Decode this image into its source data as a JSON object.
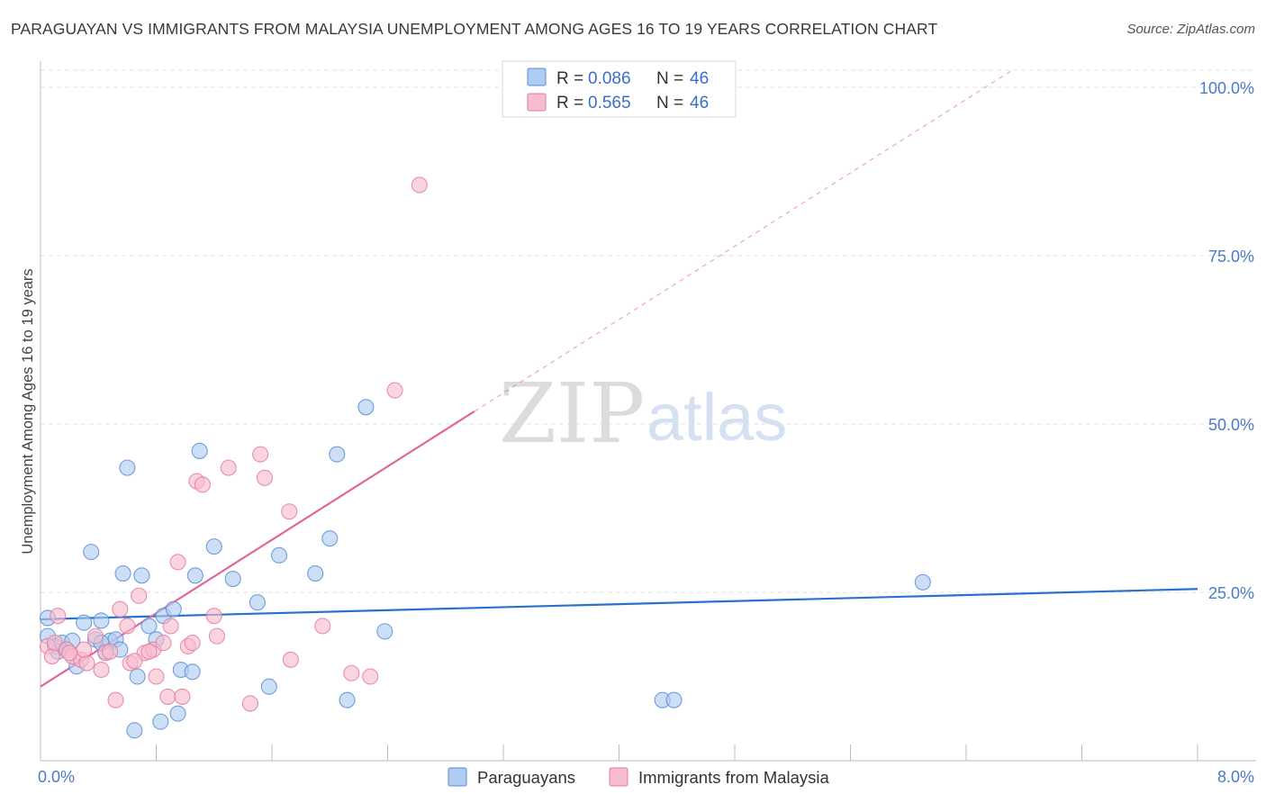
{
  "title": "PARAGUAYAN VS IMMIGRANTS FROM MALAYSIA UNEMPLOYMENT AMONG AGES 16 TO 19 YEARS CORRELATION CHART",
  "source": "Source: ZipAtlas.com",
  "watermark": {
    "zip": "ZIP",
    "atlas": "atlas"
  },
  "colors": {
    "blue_fill": "#aecbf0",
    "blue_stroke": "#5b8fd6",
    "blue_line": "#2a72c9",
    "pink_fill": "#f7bccd",
    "pink_stroke": "#e57c9f",
    "pink_line": "#e0679a",
    "grid": "#e2e2e2",
    "axis_text": "#4a7bc8"
  },
  "legend": {
    "entries": [
      {
        "r_label": "R = ",
        "r_value": "0.086",
        "n_label": "N = ",
        "n_value": "46"
      },
      {
        "r_label": "R = ",
        "r_value": "0.565",
        "n_label": "N = ",
        "n_value": "46"
      }
    ]
  },
  "chart_data": {
    "type": "scatter",
    "title": "PARAGUAYAN VS IMMIGRANTS FROM MALAYSIA UNEMPLOYMENT AMONG AGES 16 TO 19 YEARS CORRELATION CHART",
    "xlabel": "",
    "ylabel": "Unemployment Among Ages 16 to 19 years",
    "xlim": [
      0.0,
      8.0
    ],
    "ylim": [
      0.0,
      100.0
    ],
    "x_tick_labels": [
      "0.0%",
      "8.0%"
    ],
    "y_ticks": [
      25,
      50,
      75,
      100
    ],
    "y_tick_labels": [
      "25.0%",
      "50.0%",
      "75.0%",
      "100.0%"
    ],
    "grid": true,
    "legend_position": "top-center",
    "series": [
      {
        "name": "Paraguayans",
        "color": "#aecbf0",
        "trend": {
          "x": [
            0.0,
            8.0
          ],
          "y": [
            21.0,
            25.5
          ],
          "dashed_from_x": null
        },
        "points": [
          [
            0.05,
            21.2
          ],
          [
            0.05,
            18.5
          ],
          [
            0.1,
            17.0
          ],
          [
            0.12,
            16.2
          ],
          [
            0.15,
            17.5
          ],
          [
            0.18,
            16.5
          ],
          [
            0.22,
            17.8
          ],
          [
            0.25,
            14.0
          ],
          [
            0.3,
            20.5
          ],
          [
            0.35,
            31.0
          ],
          [
            0.38,
            18.0
          ],
          [
            0.42,
            20.8
          ],
          [
            0.45,
            16.2
          ],
          [
            0.48,
            17.8
          ],
          [
            0.52,
            18.0
          ],
          [
            0.57,
            27.8
          ],
          [
            0.6,
            43.5
          ],
          [
            0.67,
            12.5
          ],
          [
            0.7,
            27.5
          ],
          [
            0.75,
            20.0
          ],
          [
            0.8,
            18.0
          ],
          [
            0.83,
            5.8
          ],
          [
            0.85,
            21.5
          ],
          [
            0.92,
            22.5
          ],
          [
            0.95,
            7.0
          ],
          [
            0.97,
            13.5
          ],
          [
            1.07,
            27.5
          ],
          [
            1.1,
            46.0
          ],
          [
            1.2,
            31.8
          ],
          [
            1.33,
            27.0
          ],
          [
            1.5,
            23.5
          ],
          [
            1.58,
            11.0
          ],
          [
            1.65,
            30.5
          ],
          [
            1.9,
            27.8
          ],
          [
            2.0,
            33.0
          ],
          [
            2.05,
            45.5
          ],
          [
            2.12,
            9.0
          ],
          [
            2.25,
            52.5
          ],
          [
            2.38,
            19.2
          ],
          [
            4.3,
            9.0
          ],
          [
            4.38,
            9.0
          ],
          [
            6.1,
            26.5
          ],
          [
            0.65,
            4.5
          ],
          [
            1.05,
            13.2
          ],
          [
            0.42,
            17.5
          ],
          [
            0.55,
            16.5
          ]
        ]
      },
      {
        "name": "Immigrants from Malaysia",
        "color": "#f7bccd",
        "trend": {
          "x": [
            0.0,
            8.0
          ],
          "y": [
            11.0,
            120.0
          ],
          "dashed_from_x": 3.0
        },
        "points": [
          [
            0.05,
            17.0
          ],
          [
            0.08,
            15.5
          ],
          [
            0.1,
            17.5
          ],
          [
            0.12,
            21.5
          ],
          [
            0.18,
            16.5
          ],
          [
            0.22,
            15.5
          ],
          [
            0.28,
            15.0
          ],
          [
            0.32,
            14.5
          ],
          [
            0.38,
            18.5
          ],
          [
            0.42,
            13.5
          ],
          [
            0.45,
            16.0
          ],
          [
            0.52,
            9.0
          ],
          [
            0.55,
            22.5
          ],
          [
            0.6,
            20.0
          ],
          [
            0.62,
            14.5
          ],
          [
            0.68,
            24.5
          ],
          [
            0.72,
            16.0
          ],
          [
            0.78,
            16.5
          ],
          [
            0.8,
            12.5
          ],
          [
            0.85,
            17.5
          ],
          [
            0.88,
            9.5
          ],
          [
            0.9,
            20.0
          ],
          [
            0.95,
            29.5
          ],
          [
            0.98,
            9.5
          ],
          [
            1.02,
            17.0
          ],
          [
            1.05,
            17.5
          ],
          [
            1.08,
            41.5
          ],
          [
            1.12,
            41.0
          ],
          [
            1.2,
            21.5
          ],
          [
            1.22,
            18.5
          ],
          [
            1.3,
            43.5
          ],
          [
            1.45,
            8.5
          ],
          [
            1.52,
            45.5
          ],
          [
            1.55,
            42.0
          ],
          [
            1.72,
            37.0
          ],
          [
            1.73,
            15.0
          ],
          [
            1.95,
            20.0
          ],
          [
            2.15,
            13.0
          ],
          [
            2.28,
            12.5
          ],
          [
            2.45,
            55.0
          ],
          [
            2.62,
            85.5
          ],
          [
            0.2,
            16.0
          ],
          [
            0.3,
            16.5
          ],
          [
            0.48,
            16.2
          ],
          [
            0.65,
            14.8
          ],
          [
            0.75,
            16.2
          ]
        ]
      }
    ]
  }
}
